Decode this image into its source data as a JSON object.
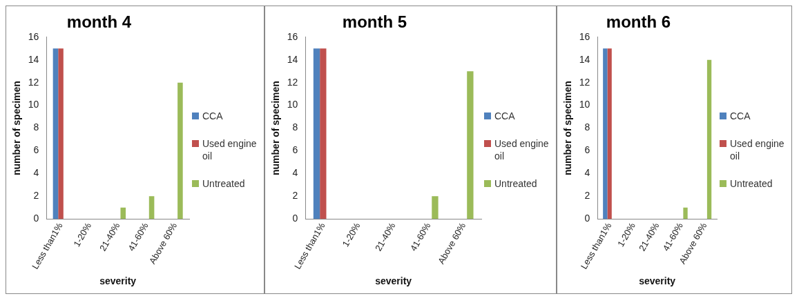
{
  "chart_data": [
    {
      "type": "bar",
      "title": "month 4",
      "xlabel": "severity",
      "ylabel": "number of specimen",
      "categories": [
        "Less than1%",
        "1-20%",
        "21-40%",
        "41-60%",
        "Above 60%"
      ],
      "series": [
        {
          "name": "CCA",
          "color": "#4f81bd",
          "values": [
            15,
            0,
            0,
            0,
            0
          ]
        },
        {
          "name": "Used engine oil",
          "color": "#c0504d",
          "values": [
            15,
            0,
            0,
            0,
            0
          ]
        },
        {
          "name": "Untreated",
          "color": "#9bbb59",
          "values": [
            0,
            0,
            1,
            2,
            12
          ]
        }
      ],
      "ylim": [
        0,
        16
      ],
      "yticks": [
        0,
        2,
        4,
        6,
        8,
        10,
        12,
        14,
        16
      ],
      "grid": false,
      "legend": "right"
    },
    {
      "type": "bar",
      "title": "month 5",
      "xlabel": "severity",
      "ylabel": "number of specimen",
      "categories": [
        "Less than1%",
        "1-20%",
        "21-40%",
        "41-60%",
        "Above 60%"
      ],
      "series": [
        {
          "name": "CCA",
          "color": "#4f81bd",
          "values": [
            15,
            0,
            0,
            0,
            0
          ]
        },
        {
          "name": "Used engine oil",
          "color": "#c0504d",
          "values": [
            15,
            0,
            0,
            0,
            0
          ]
        },
        {
          "name": "Untreated",
          "color": "#9bbb59",
          "values": [
            0,
            0,
            0,
            2,
            13
          ]
        }
      ],
      "ylim": [
        0,
        16
      ],
      "yticks": [
        0,
        2,
        4,
        6,
        8,
        10,
        12,
        14,
        16
      ],
      "grid": false,
      "legend": "right"
    },
    {
      "type": "bar",
      "title": "month 6",
      "xlabel": "severity",
      "ylabel": "number of specimen",
      "categories": [
        "Less than1%",
        "1-20%",
        "21-40%",
        "41-60%",
        "Above 60%"
      ],
      "series": [
        {
          "name": "CCA",
          "color": "#4f81bd",
          "values": [
            15,
            0,
            0,
            0,
            0
          ]
        },
        {
          "name": "Used engine oil",
          "color": "#c0504d",
          "values": [
            15,
            0,
            0,
            0,
            0
          ]
        },
        {
          "name": "Untreated",
          "color": "#9bbb59",
          "values": [
            0,
            0,
            0,
            1,
            14
          ]
        }
      ],
      "ylim": [
        0,
        16
      ],
      "yticks": [
        0,
        2,
        4,
        6,
        8,
        10,
        12,
        14,
        16
      ],
      "grid": false,
      "legend": "right"
    }
  ]
}
